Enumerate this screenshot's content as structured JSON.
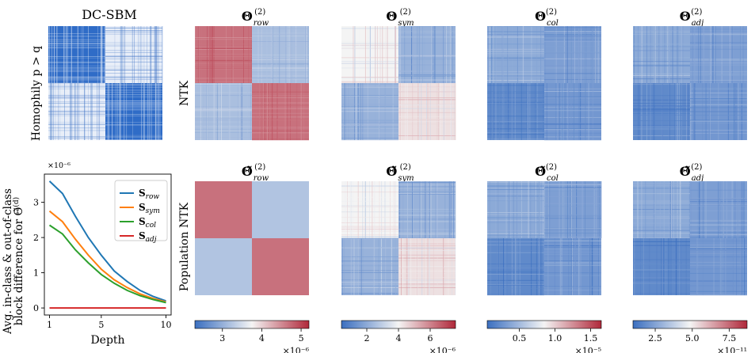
{
  "figure": {
    "dcsbm_title": "DC-SBM",
    "row_labels": [
      "Homophily p > q",
      "NTK",
      "Population NTK"
    ],
    "top_titles": [
      {
        "main": "Θ",
        "sup": "(2)",
        "sub": "row"
      },
      {
        "main": "Θ",
        "sup": "(2)",
        "sub": "sym"
      },
      {
        "main": "Θ",
        "sup": "(2)",
        "sub": "col"
      },
      {
        "main": "Θ",
        "sup": "(2)",
        "sub": "adj"
      }
    ],
    "bottom_titles": [
      {
        "main": "Θ̃",
        "sup": "(2)",
        "sub": "row"
      },
      {
        "main": "Θ̃",
        "sup": "(2)",
        "sub": "sym"
      },
      {
        "main": "Θ̃",
        "sup": "(2)",
        "sub": "col"
      },
      {
        "main": "Θ̃",
        "sup": "(2)",
        "sub": "adj"
      }
    ]
  },
  "chart_data": [
    {
      "type": "heatmap",
      "title": "DC-SBM",
      "ylabel": "Homophily p > q",
      "pattern": "two diagonal blocks dense, off-diagonal blocks sparse",
      "blocks": [
        [
          1.0,
          0.2
        ],
        [
          0.2,
          1.0
        ]
      ]
    },
    {
      "type": "line",
      "ylabel": "Avg. in-class & out-of-class block difference for Θ̃(d)",
      "xlabel": "Depth",
      "y_scale_label": "×10⁻⁶",
      "x": [
        1,
        2,
        3,
        4,
        5,
        6,
        7,
        8,
        9,
        10
      ],
      "xticks": [
        "1",
        "5",
        "10"
      ],
      "yticks": [
        "0",
        "1",
        "2",
        "3"
      ],
      "xlim": [
        0.6,
        10.4
      ],
      "ylim": [
        -0.2,
        3.8
      ],
      "legend_position": "top-right",
      "series": [
        {
          "name": "S_row",
          "label_main": "S",
          "label_sub": "row",
          "color": "#1f77b4",
          "values": [
            3.6,
            3.25,
            2.6,
            2.0,
            1.5,
            1.05,
            0.75,
            0.5,
            0.33,
            0.2
          ]
        },
        {
          "name": "S_sym",
          "label_main": "S",
          "label_sub": "sym",
          "color": "#ff7f0e",
          "values": [
            2.75,
            2.45,
            1.95,
            1.5,
            1.1,
            0.8,
            0.58,
            0.4,
            0.27,
            0.17
          ]
        },
        {
          "name": "S_col",
          "label_main": "S",
          "label_sub": "col",
          "color": "#2ca02c",
          "values": [
            2.35,
            2.1,
            1.65,
            1.28,
            0.95,
            0.7,
            0.5,
            0.35,
            0.24,
            0.15
          ]
        },
        {
          "name": "S_adj",
          "label_main": "S",
          "label_sub": "adj",
          "color": "#d62728",
          "values": [
            0,
            0,
            0,
            0,
            0,
            0,
            0,
            0,
            0,
            0
          ]
        }
      ]
    },
    {
      "type": "heatmap",
      "title": "Θ(2)_row",
      "row": "NTK",
      "blocks": [
        [
          0.82,
          0.3
        ],
        [
          0.3,
          0.82
        ]
      ],
      "noise": 0.25
    },
    {
      "type": "heatmap",
      "title": "Θ(2)_sym",
      "row": "NTK",
      "blocks": [
        [
          0.5,
          0.25
        ],
        [
          0.25,
          0.55
        ]
      ],
      "noise": 0.35
    },
    {
      "type": "heatmap",
      "title": "Θ(2)_col",
      "row": "NTK",
      "blocks": [
        [
          0.22,
          0.18
        ],
        [
          0.1,
          0.15
        ]
      ],
      "noise": 0.35
    },
    {
      "type": "heatmap",
      "title": "Θ(2)_adj",
      "row": "NTK",
      "blocks": [
        [
          0.22,
          0.18
        ],
        [
          0.1,
          0.15
        ]
      ],
      "noise": 0.35
    },
    {
      "type": "heatmap",
      "title": "Θ̃(2)_row",
      "row": "Population NTK",
      "blocks": [
        [
          0.82,
          0.32
        ],
        [
          0.32,
          0.82
        ]
      ],
      "noise": 0.0
    },
    {
      "type": "heatmap",
      "title": "Θ̃(2)_sym",
      "row": "Population NTK",
      "blocks": [
        [
          0.5,
          0.25
        ],
        [
          0.25,
          0.55
        ]
      ],
      "noise": 0.35
    },
    {
      "type": "heatmap",
      "title": "Θ̃(2)_col",
      "row": "Population NTK",
      "blocks": [
        [
          0.22,
          0.18
        ],
        [
          0.1,
          0.15
        ]
      ],
      "noise": 0.35
    },
    {
      "type": "heatmap",
      "title": "Θ̃(2)_adj",
      "row": "Population NTK",
      "blocks": [
        [
          0.22,
          0.18
        ],
        [
          0.1,
          0.15
        ]
      ],
      "noise": 0.35
    }
  ],
  "colorbars": [
    {
      "ticks": [
        "3",
        "4",
        "5"
      ],
      "tick_values": [
        3,
        4,
        5
      ],
      "range": [
        2.3,
        5.2
      ],
      "scale": "×10⁻⁶",
      "colors": [
        "#3b6fc0",
        "#f4f4f4",
        "#b0283a"
      ]
    },
    {
      "ticks": [
        "2",
        "4",
        "6"
      ],
      "tick_values": [
        2,
        4,
        6
      ],
      "range": [
        0.4,
        7.6
      ],
      "scale": "×10⁻⁶",
      "colors": [
        "#3b6fc0",
        "#f4f4f4",
        "#b0283a"
      ]
    },
    {
      "ticks": [
        "0.5",
        "1.0",
        "1.5"
      ],
      "tick_values": [
        0.5,
        1.0,
        1.5
      ],
      "range": [
        0.05,
        1.65
      ],
      "scale": "×10⁻⁵",
      "colors": [
        "#3b6fc0",
        "#f4f4f4",
        "#b0283a"
      ]
    },
    {
      "ticks": [
        "2.5",
        "5.0",
        "7.5"
      ],
      "tick_values": [
        2.5,
        5.0,
        7.5
      ],
      "range": [
        1.0,
        8.7
      ],
      "scale": "×10⁻¹¹",
      "colors": [
        "#3b6fc0",
        "#f4f4f4",
        "#b0283a"
      ]
    }
  ]
}
